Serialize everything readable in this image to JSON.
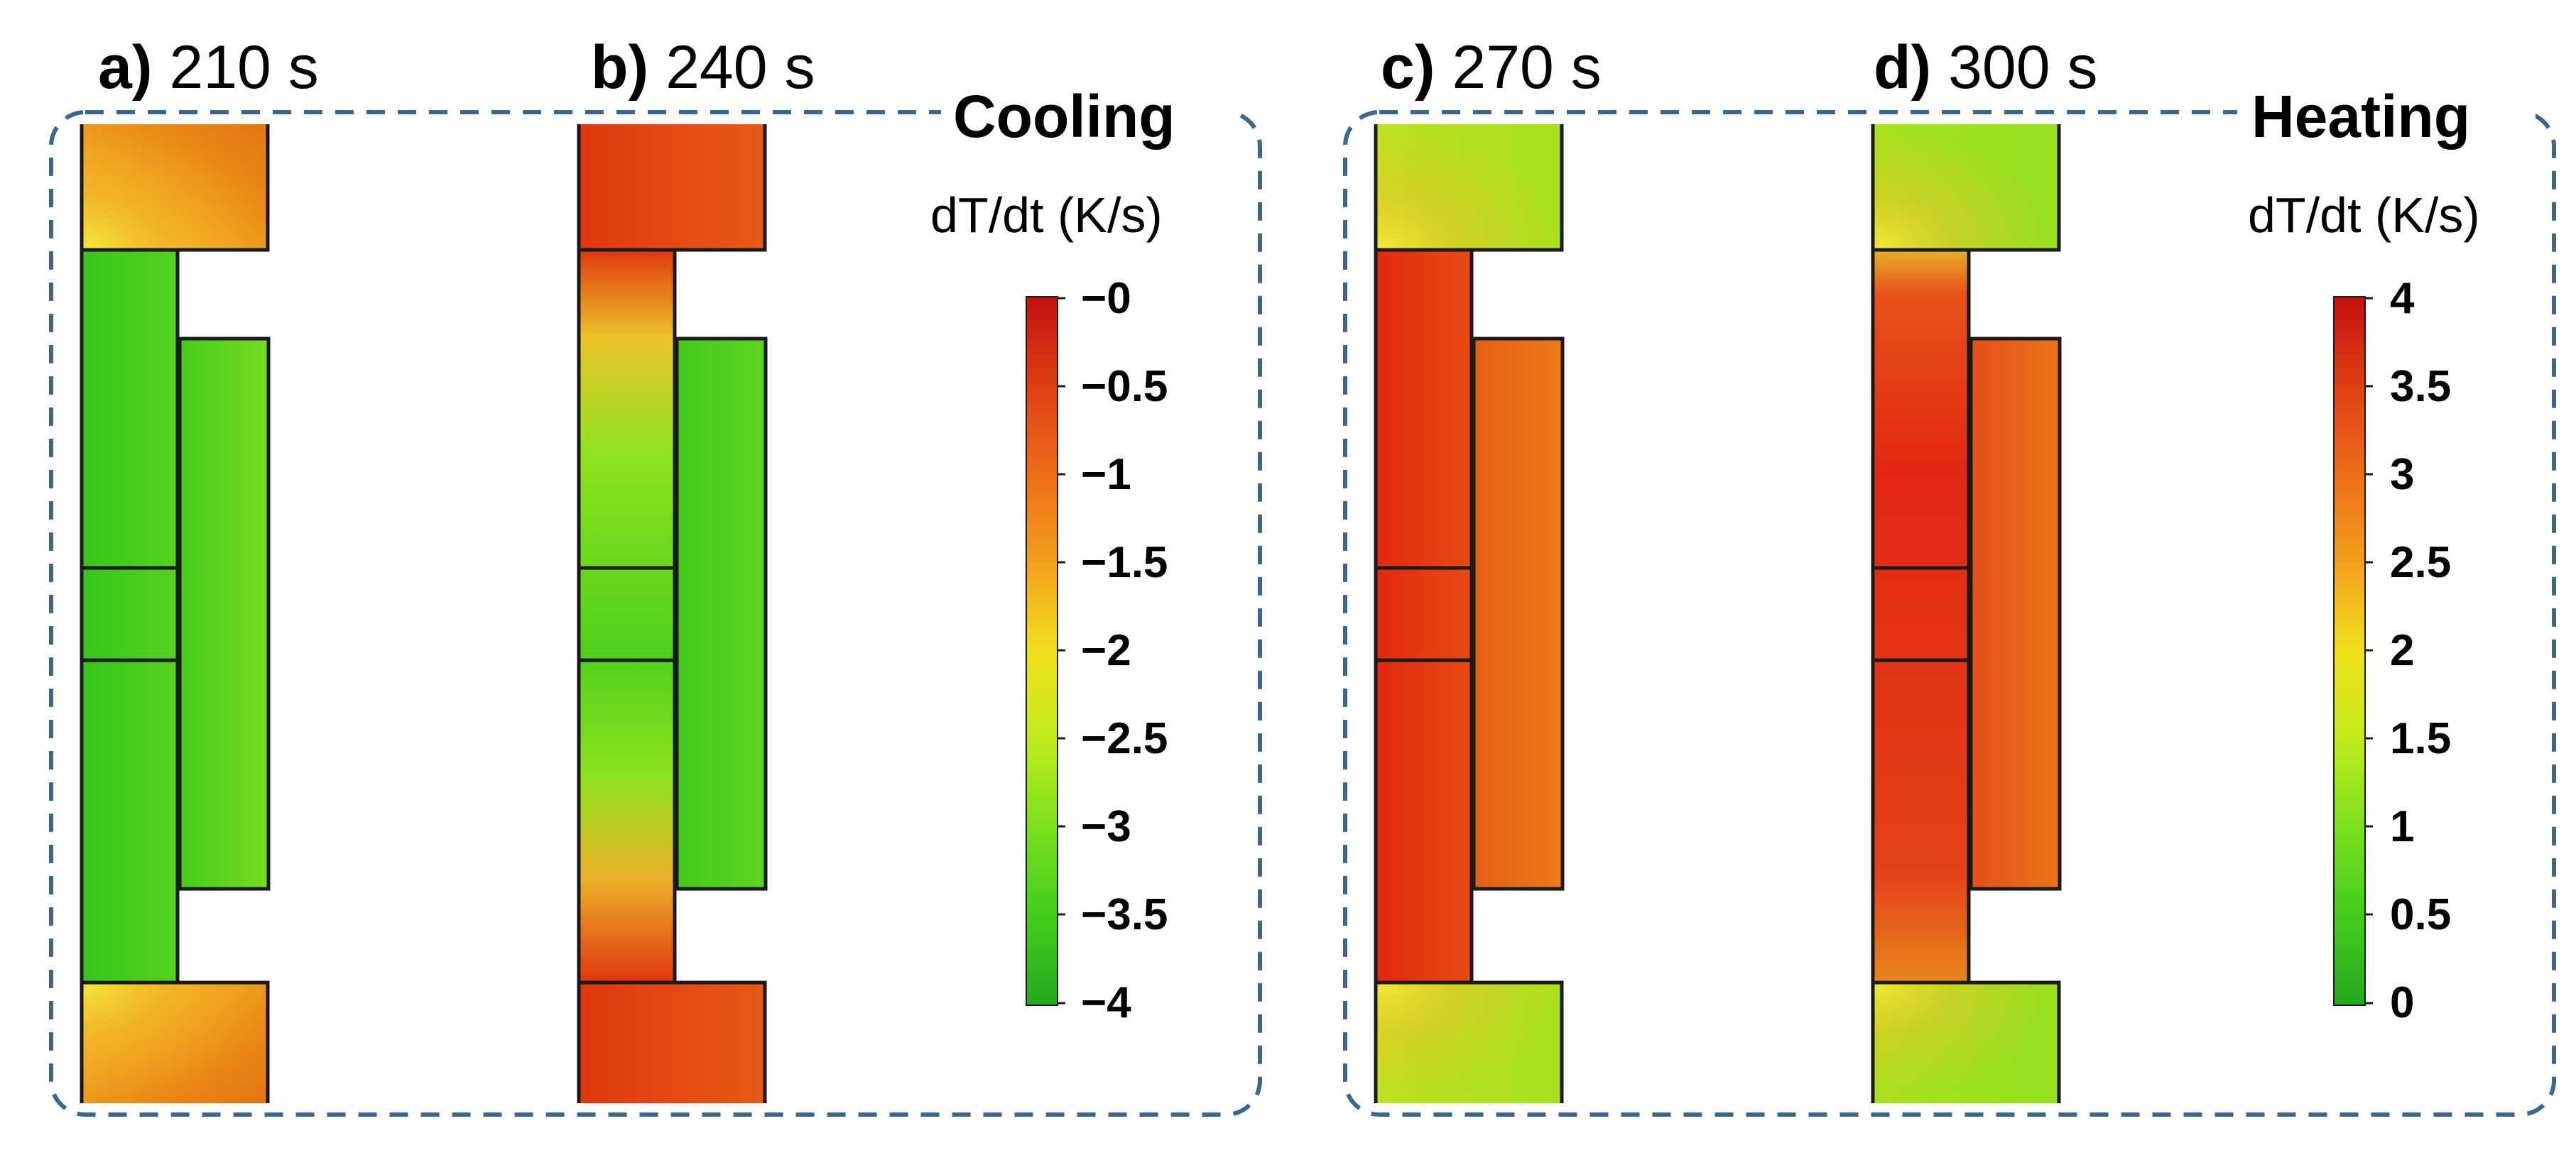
{
  "panels": [
    {
      "letter": "a)",
      "time": "210 s",
      "state": "cooling",
      "tint": "#e99418"
    },
    {
      "letter": "b)",
      "time": "240 s",
      "state": "cooling",
      "tint": "#e04a12"
    },
    {
      "letter": "c)",
      "time": "270 s",
      "state": "heating",
      "tint": "#cfe51a"
    },
    {
      "letter": "d)",
      "time": "300 s",
      "state": "heating",
      "tint": "#b4e81f"
    }
  ],
  "groups": {
    "cooling": {
      "title": "Cooling",
      "unit_label": "dT/dt (K/s)",
      "ticks": [
        "−0",
        "−0.5",
        "−1",
        "−1.5",
        "−2",
        "−2.5",
        "−3",
        "−3.5",
        "−4"
      ]
    },
    "heating": {
      "title": "Heating",
      "unit_label": "dT/dt (K/s)",
      "ticks": [
        "4",
        "3.5",
        "3",
        "2.5",
        "2",
        "1.5",
        "1",
        "0.5",
        "0"
      ]
    }
  },
  "colors": {
    "frame": "#3a6690",
    "outline": "#1a1a1a",
    "ramp": [
      "#c81010",
      "#e03a14",
      "#ee6a18",
      "#f49a1c",
      "#f4d21c",
      "#d4ee1c",
      "#8ce41c",
      "#48d41c",
      "#28b020"
    ],
    "cooling_green": "#3fcc1f",
    "cooling_red": "#e14410",
    "heating_red": "#e33414",
    "heating_orange": "#ea6a18",
    "highlight": "#f4e22a"
  }
}
